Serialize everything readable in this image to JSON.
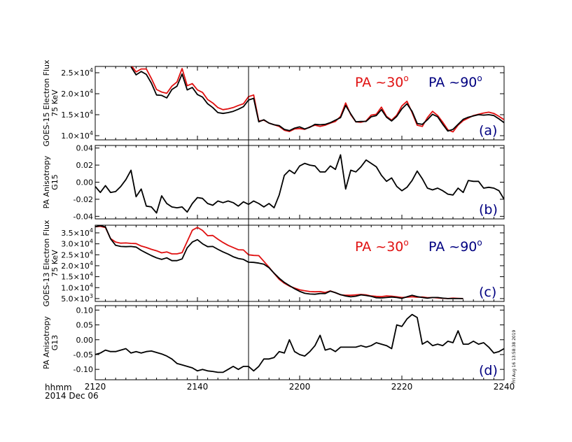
{
  "figure": {
    "x_axis": {
      "tick_labels": [
        "2120",
        "2140",
        "2200",
        "2220",
        "2240"
      ],
      "tick_minutes": [
        0,
        20,
        40,
        60,
        80
      ],
      "range": [
        0,
        80
      ],
      "corner_label_1": "hhmm",
      "corner_label_2": "2014 Dec 06"
    },
    "event_marker_minute": 30,
    "timestamp": "Fri Aug 16 13:58:38 2019"
  },
  "chart_data": [
    {
      "type": "line",
      "panel_label": "(a)",
      "ylabel_lines": [
        "GOES-15 Electron Flux",
        "75 KeV"
      ],
      "ylim": [
        9000,
        26500
      ],
      "yticks": [
        {
          "value": 10000,
          "label_base": "1.0×10",
          "exp": "4"
        },
        {
          "value": 15000,
          "label_base": "1.5×10",
          "exp": "4"
        },
        {
          "value": 20000,
          "label_base": "2.0×10",
          "exp": "4"
        },
        {
          "value": 25000,
          "label_base": "2.5×10",
          "exp": "4"
        }
      ],
      "legend": [
        {
          "text": "PA ~30",
          "sup": "o",
          "color": "#e01010"
        },
        {
          "text": "PA ~90",
          "sup": "o",
          "color": "#000080"
        }
      ],
      "x": [
        7,
        8,
        9,
        10,
        11,
        12,
        13,
        14,
        15,
        16,
        17,
        18,
        19,
        20,
        21,
        22,
        23,
        24,
        25,
        26,
        27,
        28,
        29,
        30,
        31,
        32,
        33,
        34,
        35,
        36,
        37,
        38,
        39,
        40,
        41,
        42,
        43,
        44,
        45,
        46,
        47,
        48,
        49,
        50,
        51,
        52,
        53,
        54,
        55,
        56,
        57,
        58,
        59,
        60,
        61,
        62,
        63,
        64,
        65,
        66,
        67,
        68,
        69,
        70,
        71,
        72,
        73,
        74,
        75,
        76,
        77,
        78,
        79,
        80
      ],
      "series": [
        {
          "color": "#e01010",
          "values": [
            26800,
            25200,
            25900,
            25900,
            23600,
            21000,
            20400,
            20100,
            21800,
            22800,
            26000,
            21900,
            22400,
            20900,
            20300,
            18600,
            17800,
            16700,
            16200,
            16400,
            16700,
            17200,
            17600,
            19300,
            19700,
            13500,
            13700,
            13000,
            12600,
            12200,
            11300,
            11000,
            11600,
            11700,
            11500,
            12100,
            12500,
            12200,
            12500,
            13000,
            13400,
            14600,
            17800,
            15000,
            13300,
            13200,
            13500,
            14900,
            15100,
            16800,
            14600,
            13700,
            14900,
            17100,
            18200,
            15500,
            12500,
            12200,
            14300,
            15800,
            14800,
            13200,
            11400,
            10900,
            12500,
            13600,
            14200,
            14800,
            15100,
            15400,
            15600,
            15300,
            14600,
            13800
          ]
        },
        {
          "color": "#000000",
          "values": [
            26400,
            24500,
            25300,
            24600,
            22500,
            19700,
            19600,
            19000,
            21000,
            21800,
            24700,
            20900,
            21500,
            19800,
            19200,
            17600,
            16700,
            15500,
            15300,
            15500,
            15800,
            16300,
            16900,
            18500,
            18900,
            13300,
            13800,
            13000,
            12600,
            12400,
            11500,
            11200,
            11800,
            12100,
            11600,
            12000,
            12700,
            12600,
            12700,
            13100,
            13700,
            14300,
            17200,
            15200,
            13300,
            13400,
            13400,
            14500,
            14800,
            16200,
            14400,
            13500,
            14600,
            16400,
            17600,
            15800,
            12900,
            12700,
            13800,
            15100,
            14500,
            12700,
            11100,
            11500,
            12700,
            13900,
            14400,
            14700,
            15000,
            14900,
            15000,
            14800,
            14000,
            13100
          ]
        }
      ]
    },
    {
      "type": "line",
      "panel_label": "(b)",
      "ylabel_lines": [
        "PA Anisotropy",
        "G15"
      ],
      "ylim": [
        -0.043,
        0.043
      ],
      "yticks": [
        {
          "value": -0.04,
          "label_base": "-0.04"
        },
        {
          "value": -0.02,
          "label_base": "-0.02"
        },
        {
          "value": 0.0,
          "label_base": "0.00"
        },
        {
          "value": 0.02,
          "label_base": "0.02"
        },
        {
          "value": 0.04,
          "label_base": "0.04"
        }
      ],
      "x": [
        0,
        1,
        2,
        3,
        4,
        5,
        6,
        7,
        8,
        9,
        10,
        11,
        12,
        13,
        14,
        15,
        16,
        17,
        18,
        19,
        20,
        21,
        22,
        23,
        24,
        25,
        26,
        27,
        28,
        29,
        30,
        31,
        32,
        33,
        34,
        35,
        36,
        37,
        38,
        39,
        40,
        41,
        42,
        43,
        44,
        45,
        46,
        47,
        48,
        49,
        50,
        51,
        52,
        53,
        54,
        55,
        56,
        57,
        58,
        59,
        60,
        61,
        62,
        63,
        64,
        65,
        66,
        67,
        68,
        69,
        70,
        71,
        72,
        73,
        74,
        75,
        76,
        77,
        78,
        79,
        80
      ],
      "series": [
        {
          "color": "#000000",
          "values": [
            -0.005,
            -0.012,
            -0.004,
            -0.012,
            -0.011,
            -0.005,
            0.003,
            0.014,
            -0.017,
            -0.008,
            -0.028,
            -0.029,
            -0.036,
            -0.016,
            -0.025,
            -0.029,
            -0.03,
            -0.029,
            -0.035,
            -0.025,
            -0.018,
            -0.019,
            -0.025,
            -0.027,
            -0.022,
            -0.024,
            -0.022,
            -0.024,
            -0.028,
            -0.023,
            -0.026,
            -0.022,
            -0.025,
            -0.029,
            -0.025,
            -0.03,
            -0.015,
            0.008,
            0.014,
            0.01,
            0.019,
            0.022,
            0.02,
            0.019,
            0.012,
            0.012,
            0.019,
            0.015,
            0.032,
            -0.008,
            0.014,
            0.012,
            0.018,
            0.026,
            0.022,
            0.018,
            0.008,
            0.001,
            0.005,
            -0.005,
            -0.01,
            -0.006,
            0.002,
            0.013,
            0.004,
            -0.007,
            -0.009,
            -0.007,
            -0.01,
            -0.014,
            -0.015,
            -0.007,
            -0.012,
            0.002,
            0.001,
            0.001,
            -0.007,
            -0.006,
            -0.007,
            -0.01,
            -0.02
          ]
        }
      ]
    },
    {
      "type": "line",
      "panel_label": "(c)",
      "ylabel_lines": [
        "GOES-13 Electron Flux",
        "75 KeV"
      ],
      "ylim": [
        3700,
        38500
      ],
      "yticks": [
        {
          "value": 5000,
          "label_base": "5.0×10",
          "exp": "3"
        },
        {
          "value": 10000,
          "label_base": "1.0×10",
          "exp": "4"
        },
        {
          "value": 15000,
          "label_base": "1.5×10",
          "exp": "4"
        },
        {
          "value": 20000,
          "label_base": "2.0×10",
          "exp": "4"
        },
        {
          "value": 25000,
          "label_base": "2.5×10",
          "exp": "4"
        },
        {
          "value": 30000,
          "label_base": "3.0×10",
          "exp": "4"
        },
        {
          "value": 35000,
          "label_base": "3.5×10",
          "exp": "4"
        }
      ],
      "legend": [
        {
          "text": "PA ~30",
          "sup": "o",
          "color": "#e01010"
        },
        {
          "text": "PA ~90",
          "sup": "o",
          "color": "#000080"
        }
      ],
      "x": [
        0,
        1,
        2,
        3,
        4,
        5,
        6,
        7,
        8,
        9,
        10,
        11,
        12,
        13,
        14,
        15,
        16,
        17,
        18,
        19,
        20,
        21,
        22,
        23,
        24,
        25,
        26,
        27,
        28,
        29,
        30,
        31,
        32,
        33,
        34,
        35,
        36,
        37,
        38,
        39,
        40,
        41,
        42,
        43,
        44,
        45,
        46,
        47,
        48,
        49,
        50,
        51,
        52,
        53,
        54,
        55,
        56,
        57,
        58,
        59,
        60,
        61,
        62,
        63,
        64,
        65,
        66,
        67,
        68,
        69,
        70,
        71,
        72,
        73,
        74,
        75,
        76,
        77,
        78,
        79,
        80
      ],
      "series": [
        {
          "color": "#e01010",
          "values": [
            37800,
            38000,
            37400,
            32400,
            30800,
            30300,
            30400,
            30200,
            30100,
            29000,
            28300,
            27500,
            26800,
            25900,
            26300,
            25400,
            25400,
            26000,
            31100,
            36200,
            37500,
            36100,
            33700,
            33800,
            32100,
            30600,
            29300,
            28300,
            27300,
            27200,
            25000,
            24700,
            24600,
            22000,
            19300,
            16500,
            13800,
            12000,
            10700,
            9800,
            9000,
            8600,
            8200,
            8100,
            8200,
            7800,
            8500,
            7700,
            6700,
            6500,
            6500,
            6700,
            6900,
            6700,
            6200,
            6000,
            5900,
            6200,
            6100,
            5800,
            5500,
            5600,
            5800,
            5600,
            5700,
            5400,
            5500,
            5300,
            5100,
            5000,
            5200,
            5100,
            5000,
            null,
            null,
            null,
            null,
            null,
            null,
            null,
            null
          ]
        },
        {
          "color": "#000000",
          "values": [
            37800,
            38300,
            37700,
            32300,
            29300,
            28800,
            28700,
            28800,
            28500,
            27000,
            25800,
            24600,
            23600,
            22900,
            23600,
            22300,
            22300,
            23100,
            28200,
            30800,
            31900,
            30000,
            28700,
            28800,
            27500,
            26300,
            25300,
            24100,
            23300,
            22900,
            21600,
            21500,
            21200,
            20700,
            19100,
            16600,
            14300,
            12400,
            10900,
            9500,
            8300,
            7400,
            7100,
            7000,
            7300,
            7300,
            8400,
            7700,
            6800,
            6200,
            5800,
            6100,
            6700,
            6400,
            6000,
            5400,
            5300,
            5500,
            5700,
            5500,
            5100,
            5800,
            6500,
            5900,
            5500,
            5200,
            5500,
            5500,
            5200,
            5000,
            5000,
            5000,
            5000,
            null,
            null,
            null,
            null,
            null,
            null,
            null,
            null
          ]
        }
      ]
    },
    {
      "type": "line",
      "panel_label": "(d)",
      "ylabel_lines": [
        "PA Anisotropy",
        "G13"
      ],
      "ylim": [
        -0.135,
        0.115
      ],
      "yticks": [
        {
          "value": -0.1,
          "label_base": "-0.10"
        },
        {
          "value": -0.05,
          "label_base": "-0.05"
        },
        {
          "value": 0.0,
          "label_base": "0.00"
        },
        {
          "value": 0.05,
          "label_base": "0.05"
        },
        {
          "value": 0.1,
          "label_base": "0.10"
        }
      ],
      "x": [
        0,
        1,
        2,
        3,
        4,
        5,
        6,
        7,
        8,
        9,
        10,
        11,
        12,
        13,
        14,
        15,
        16,
        17,
        18,
        19,
        20,
        21,
        22,
        23,
        24,
        25,
        26,
        27,
        28,
        29,
        30,
        31,
        32,
        33,
        34,
        35,
        36,
        37,
        38,
        39,
        40,
        41,
        42,
        43,
        44,
        45,
        46,
        47,
        48,
        49,
        50,
        51,
        52,
        53,
        54,
        55,
        56,
        57,
        58,
        59,
        60,
        61,
        62,
        63,
        64,
        65,
        66,
        67,
        68,
        69,
        70,
        71,
        72,
        73,
        74,
        75,
        76,
        77,
        78,
        79,
        80
      ],
      "series": [
        {
          "color": "#000000",
          "values": [
            -0.05,
            -0.045,
            -0.035,
            -0.04,
            -0.04,
            -0.035,
            -0.03,
            -0.045,
            -0.04,
            -0.045,
            -0.04,
            -0.038,
            -0.043,
            -0.048,
            -0.055,
            -0.065,
            -0.08,
            -0.085,
            -0.09,
            -0.095,
            -0.105,
            -0.1,
            -0.105,
            -0.107,
            -0.11,
            -0.11,
            -0.1,
            -0.09,
            -0.1,
            -0.09,
            -0.09,
            -0.105,
            -0.09,
            -0.065,
            -0.065,
            -0.06,
            -0.04,
            -0.045,
            0.0,
            -0.04,
            -0.05,
            -0.055,
            -0.04,
            -0.02,
            0.015,
            -0.035,
            -0.03,
            -0.04,
            -0.025,
            -0.025,
            -0.025,
            -0.025,
            -0.02,
            -0.025,
            -0.02,
            -0.01,
            -0.015,
            -0.02,
            -0.03,
            0.05,
            0.045,
            0.07,
            0.085,
            0.075,
            -0.015,
            -0.005,
            -0.02,
            -0.015,
            -0.02,
            -0.005,
            -0.01,
            0.03,
            -0.015,
            -0.015,
            -0.005,
            -0.015,
            -0.01,
            -0.025,
            -0.045,
            -0.04,
            -0.03
          ]
        }
      ]
    }
  ]
}
